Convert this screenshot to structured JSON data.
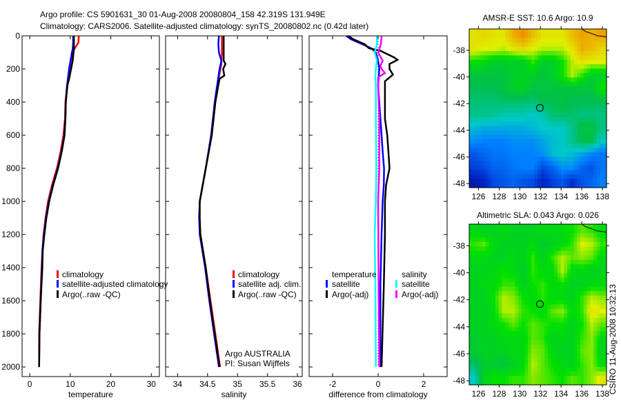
{
  "title_line1": "Argo profile: CS 5901631_30 01-Aug-2008 20080804_158 42.319S 131.949E",
  "title_line2": "Climatology: CARS2006. Satellite-adjusted climatology: synTS_20080802.nc (0.42d later)",
  "footer_stamp": "CSIRO 11-Aug-2008 10:32:13",
  "credit_line1": "Argo AUSTRALIA",
  "credit_line2": "PI: Susan Wijffels",
  "colors": {
    "climatology": "#ff0000",
    "satellite": "#0000ff",
    "argo": "#000000",
    "sal_satellite": "#00ffff",
    "sal_argo": "#ff00ff"
  },
  "chart_data": [
    {
      "type": "line",
      "name": "temperature-profile",
      "xlabel": "temperature",
      "ylabel": "",
      "xlim": [
        -1.9,
        32
      ],
      "ylim": [
        2058,
        0
      ],
      "xticks": [
        0,
        10,
        20,
        30
      ],
      "yticks": [
        0,
        200,
        400,
        600,
        800,
        1000,
        1200,
        1400,
        1600,
        1800,
        2000
      ],
      "legend": [
        "climatology",
        "satellite-adjusted climatology",
        "Argo(..raw -QC)"
      ],
      "series": [
        {
          "name": "climatology",
          "color_key": "climatology",
          "depth": [
            0,
            40,
            80,
            100,
            200,
            300,
            400,
            500,
            600,
            700,
            800,
            900,
            1000,
            1100,
            1200,
            1300,
            1400,
            1600,
            1800,
            2000
          ],
          "values": [
            12.1,
            12.0,
            11.0,
            10.5,
            9.8,
            9.2,
            8.8,
            8.7,
            8.3,
            7.6,
            6.7,
            5.5,
            4.5,
            3.9,
            3.4,
            3.1,
            2.9,
            2.6,
            2.3,
            2.3
          ]
        },
        {
          "name": "satellite-adjusted climatology",
          "color_key": "satellite",
          "depth": [
            0,
            40,
            80,
            100,
            200,
            300,
            400,
            500,
            600,
            700,
            800,
            900,
            1000,
            1100,
            1200,
            1300,
            1400,
            1600,
            1800,
            2000
          ],
          "values": [
            10.7,
            10.7,
            10.6,
            10.4,
            9.7,
            9.2,
            8.9,
            8.8,
            8.5,
            7.8,
            6.9,
            5.7,
            4.7,
            4.0,
            3.5,
            3.1,
            3.0,
            2.7,
            2.4,
            2.3
          ]
        },
        {
          "name": "Argo(..raw -QC)",
          "color_key": "argo",
          "depth": [
            0,
            40,
            80,
            100,
            150,
            200,
            250,
            300,
            400,
            500,
            600,
            700,
            800,
            900,
            1000,
            1100,
            1200,
            1300,
            1400,
            1600,
            1800,
            2000
          ],
          "values": [
            10.9,
            10.9,
            10.9,
            10.8,
            10.6,
            10.2,
            9.8,
            9.3,
            8.9,
            8.8,
            8.6,
            7.9,
            7.0,
            5.8,
            4.8,
            4.1,
            3.6,
            3.2,
            3.1,
            2.7,
            2.4,
            2.3
          ]
        }
      ]
    },
    {
      "type": "line",
      "name": "salinity-profile",
      "xlabel": "salinity",
      "xlim": [
        33.8,
        36.08
      ],
      "ylim": [
        2058,
        0
      ],
      "xticks": [
        34,
        34.5,
        35,
        35.5,
        36
      ],
      "legend": [
        "climatology",
        "satellite adj. clim.",
        "Argo(..raw -QC)"
      ],
      "series": [
        {
          "name": "climatology",
          "color_key": "climatology",
          "depth": [
            0,
            100,
            170,
            250,
            400,
            600,
            800,
            1000,
            1100,
            1200,
            1400,
            1600,
            1800,
            2000
          ],
          "values": [
            34.74,
            34.74,
            34.73,
            34.69,
            34.63,
            34.57,
            34.47,
            34.37,
            34.36,
            34.38,
            34.47,
            34.55,
            34.63,
            34.71
          ]
        },
        {
          "name": "satellite adj. clim.",
          "color_key": "satellite",
          "depth": [
            0,
            50,
            100,
            150,
            200,
            250,
            400,
            600,
            800,
            1000,
            1100,
            1200,
            1400,
            1600,
            1800,
            2000
          ],
          "values": [
            34.69,
            34.68,
            34.69,
            34.73,
            34.7,
            34.68,
            34.62,
            34.56,
            34.47,
            34.37,
            34.36,
            34.37,
            34.46,
            34.53,
            34.61,
            34.69
          ]
        },
        {
          "name": "Argo(..raw -QC)",
          "color_key": "argo",
          "depth": [
            0,
            100,
            150,
            170,
            200,
            240,
            260,
            300,
            400,
            600,
            800,
            1000,
            1100,
            1200,
            1400,
            1600,
            1800,
            2000
          ],
          "values": [
            34.77,
            34.77,
            34.77,
            34.8,
            34.76,
            34.78,
            34.7,
            34.68,
            34.63,
            34.57,
            34.47,
            34.37,
            34.37,
            34.38,
            34.47,
            34.54,
            34.62,
            34.7
          ]
        }
      ]
    },
    {
      "type": "line",
      "name": "difference-profile",
      "xlabel": "difference from climatology",
      "xlim": [
        -3.03,
        3.03
      ],
      "ylim": [
        2058,
        0
      ],
      "xticks": [
        -2,
        0,
        2
      ],
      "legend_temperature_title": "temperature",
      "legend_salinity_title": "salinity",
      "legend": [
        "satellite",
        "Argo(-adj)",
        "satellite",
        "Argo(-adj)"
      ],
      "series": [
        {
          "name": "temperature satellite",
          "color_key": "satellite",
          "depth": [
            0,
            20,
            50,
            75,
            100,
            150,
            200,
            300,
            500,
            600,
            700,
            800,
            900,
            1000,
            1200,
            1500,
            2000
          ],
          "values": [
            -1.4,
            -1.2,
            -0.7,
            -0.3,
            -0.1,
            0.0,
            0.05,
            0.0,
            0.1,
            0.15,
            0.2,
            0.26,
            0.25,
            0.2,
            0.15,
            0.1,
            0.1
          ]
        },
        {
          "name": "temperature Argo(-adj)",
          "color_key": "argo",
          "depth": [
            0,
            20,
            50,
            75,
            90,
            130,
            145,
            170,
            200,
            234,
            274,
            300,
            500,
            600,
            700,
            800,
            900,
            1000,
            1200,
            1500,
            2000
          ],
          "values": [
            -1.3,
            -1.1,
            -0.6,
            -0.4,
            0.1,
            0.7,
            0.85,
            0.5,
            0.5,
            0.65,
            0.3,
            0.3,
            0.3,
            0.4,
            0.45,
            0.5,
            0.35,
            0.3,
            0.3,
            0.25,
            0.15
          ]
        },
        {
          "name": "salinity satellite",
          "color_key": "sal_satellite",
          "depth": [
            0,
            50,
            100,
            150,
            200,
            250,
            300,
            500,
            800,
            1000,
            1200,
            1500,
            2000
          ],
          "values": [
            -0.05,
            -0.05,
            -0.15,
            -0.05,
            -0.1,
            -0.12,
            -0.1,
            -0.1,
            -0.08,
            -0.1,
            -0.15,
            -0.12,
            -0.1
          ]
        },
        {
          "name": "salinity Argo(-adj)",
          "color_key": "sal_argo",
          "depth": [
            0,
            50,
            100,
            150,
            180,
            200,
            225,
            250,
            300,
            500,
            800,
            1000,
            1500,
            2000
          ],
          "values": [
            0.15,
            0.12,
            0.0,
            0.2,
            0.1,
            0.15,
            0.3,
            0.0,
            0.0,
            0.05,
            0.05,
            0.0,
            0.02,
            0.05
          ]
        }
      ]
    },
    {
      "type": "heatmap",
      "name": "sst-map",
      "title": "AMSR-E SST: 10.6 Argo: 10.9",
      "xlim": [
        125.1,
        138.4
      ],
      "ylim": [
        -48.3,
        -36.4
      ],
      "xticks": [
        126,
        128,
        130,
        132,
        134,
        136,
        138
      ],
      "yticks": [
        -38,
        -40,
        -42,
        -44,
        -46,
        -48
      ],
      "marker": {
        "lon": 131.949,
        "lat": -42.319
      },
      "coast": [
        [
          136.0,
          -36.4
        ],
        [
          136.4,
          -36.6
        ],
        [
          137.0,
          -36.75
        ],
        [
          137.5,
          -36.9
        ],
        [
          138.0,
          -36.95
        ],
        [
          138.4,
          -37.0
        ]
      ],
      "grid": [
        [
          0.72,
          0.74,
          0.72,
          0.72,
          0.8,
          0.85,
          0.78,
          0.72,
          0.72,
          0.72,
          0.78,
          0.82,
          0.8,
          0.82
        ],
        [
          0.72,
          0.7,
          0.7,
          0.68,
          0.72,
          0.74,
          0.7,
          0.68,
          0.68,
          0.68,
          0.72,
          0.8,
          0.78,
          0.74
        ],
        [
          0.6,
          0.58,
          0.55,
          0.55,
          0.55,
          0.55,
          0.62,
          0.55,
          0.55,
          0.6,
          0.68,
          0.72,
          0.7,
          0.7
        ],
        [
          0.52,
          0.52,
          0.52,
          0.52,
          0.55,
          0.56,
          0.55,
          0.52,
          0.55,
          0.6,
          0.68,
          0.62,
          0.55,
          0.55
        ],
        [
          0.5,
          0.5,
          0.5,
          0.52,
          0.55,
          0.56,
          0.52,
          0.52,
          0.52,
          0.52,
          0.52,
          0.52,
          0.52,
          0.6
        ],
        [
          0.47,
          0.47,
          0.47,
          0.48,
          0.48,
          0.48,
          0.47,
          0.5,
          0.5,
          0.52,
          0.5,
          0.5,
          0.5,
          0.5
        ],
        [
          0.45,
          0.45,
          0.44,
          0.42,
          0.42,
          0.42,
          0.4,
          0.42,
          0.48,
          0.48,
          0.48,
          0.46,
          0.46,
          0.46
        ],
        [
          0.38,
          0.36,
          0.36,
          0.36,
          0.36,
          0.36,
          0.38,
          0.4,
          0.4,
          0.4,
          0.45,
          0.52,
          0.52,
          0.46
        ],
        [
          0.32,
          0.3,
          0.3,
          0.3,
          0.32,
          0.32,
          0.32,
          0.35,
          0.38,
          0.4,
          0.45,
          0.5,
          0.5,
          0.4
        ],
        [
          0.22,
          0.25,
          0.28,
          0.28,
          0.3,
          0.3,
          0.3,
          0.32,
          0.38,
          0.4,
          0.38,
          0.35,
          0.3,
          0.28
        ],
        [
          0.18,
          0.2,
          0.25,
          0.25,
          0.28,
          0.3,
          0.3,
          0.2,
          0.25,
          0.32,
          0.32,
          0.25,
          0.22,
          0.28
        ],
        [
          0.08,
          0.12,
          0.2,
          0.22,
          0.25,
          0.22,
          0.2,
          0.12,
          0.18,
          0.22,
          0.15,
          0.22,
          0.25,
          0.3
        ]
      ]
    },
    {
      "type": "heatmap",
      "name": "sla-map",
      "title": "Altimetric SLA: 0.043 Argo: 0.026",
      "xlim": [
        125.1,
        138.4
      ],
      "ylim": [
        -48.3,
        -36.4
      ],
      "xticks": [
        126,
        128,
        130,
        132,
        134,
        136,
        138
      ],
      "yticks": [
        -38,
        -40,
        -42,
        -44,
        -46,
        -48
      ],
      "marker": {
        "lon": 131.949,
        "lat": -42.319
      },
      "coast": [
        [
          136.0,
          -36.4
        ],
        [
          136.4,
          -36.6
        ],
        [
          137.0,
          -36.75
        ],
        [
          137.5,
          -36.9
        ],
        [
          138.0,
          -36.95
        ],
        [
          138.4,
          -37.0
        ]
      ],
      "grid": [
        [
          0.58,
          0.56,
          0.56,
          0.58,
          0.56,
          0.56,
          0.56,
          0.58,
          0.58,
          0.58,
          0.6,
          0.64,
          0.62,
          0.58
        ],
        [
          0.62,
          0.64,
          0.58,
          0.56,
          0.56,
          0.56,
          0.58,
          0.54,
          0.56,
          0.58,
          0.62,
          0.7,
          0.68,
          0.62
        ],
        [
          0.58,
          0.58,
          0.56,
          0.56,
          0.58,
          0.56,
          0.62,
          0.56,
          0.62,
          0.68,
          0.64,
          0.66,
          0.64,
          0.58
        ],
        [
          0.56,
          0.56,
          0.58,
          0.6,
          0.58,
          0.54,
          0.62,
          0.58,
          0.58,
          0.68,
          0.58,
          0.58,
          0.56,
          0.56
        ],
        [
          0.56,
          0.58,
          0.58,
          0.62,
          0.62,
          0.56,
          0.6,
          0.62,
          0.58,
          0.6,
          0.56,
          0.56,
          0.58,
          0.58
        ],
        [
          0.56,
          0.56,
          0.6,
          0.68,
          0.66,
          0.6,
          0.58,
          0.62,
          0.58,
          0.58,
          0.56,
          0.62,
          0.68,
          0.66
        ],
        [
          0.56,
          0.56,
          0.58,
          0.68,
          0.68,
          0.62,
          0.6,
          0.58,
          0.64,
          0.66,
          0.58,
          0.62,
          0.72,
          0.7
        ],
        [
          0.56,
          0.56,
          0.58,
          0.6,
          0.64,
          0.6,
          0.64,
          0.62,
          0.6,
          0.6,
          0.56,
          0.6,
          0.68,
          0.64
        ],
        [
          0.54,
          0.56,
          0.56,
          0.58,
          0.58,
          0.58,
          0.64,
          0.62,
          0.56,
          0.58,
          0.56,
          0.62,
          0.66,
          0.58
        ],
        [
          0.54,
          0.56,
          0.56,
          0.56,
          0.58,
          0.58,
          0.66,
          0.64,
          0.58,
          0.56,
          0.56,
          0.64,
          0.66,
          0.56
        ],
        [
          0.48,
          0.54,
          0.54,
          0.52,
          0.56,
          0.58,
          0.68,
          0.64,
          0.6,
          0.58,
          0.56,
          0.62,
          0.66,
          0.58
        ],
        [
          0.4,
          0.56,
          0.6,
          0.6,
          0.62,
          0.62,
          0.66,
          0.64,
          0.62,
          0.6,
          0.64,
          0.62,
          0.66,
          0.72
        ]
      ]
    }
  ]
}
